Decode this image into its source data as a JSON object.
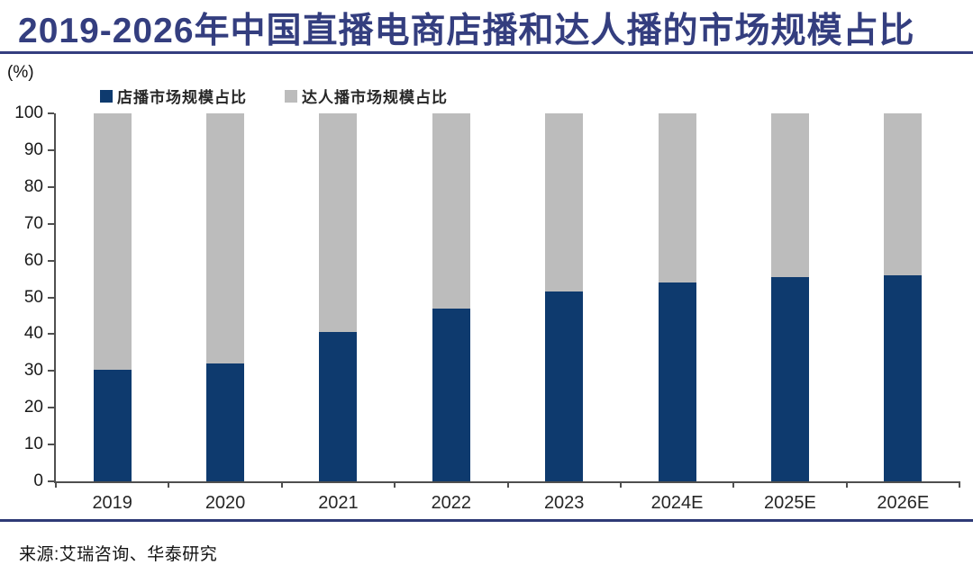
{
  "title": "2019-2026年中国直播电商店播和达人播的市场规模占比",
  "y_axis_unit_label": "(%)",
  "source": "来源:艾瑞咨询、华泰研究",
  "colors": {
    "store_bar": "#0e3a6e",
    "influencer_bar": "#bcbcbc",
    "title_blue": "#343e7f",
    "rule_blue": "#2e3a76",
    "axis": "#4f4f4f"
  },
  "chart_data": {
    "type": "bar",
    "stacked": true,
    "title": "2019-2026年中国直播电商店播和达人播的市场规模占比",
    "categories": [
      "2019",
      "2020",
      "2021",
      "2022",
      "2023",
      "2024E",
      "2025E",
      "2026E"
    ],
    "series": [
      {
        "name": "店播市场规模占比",
        "color": "#0e3a6e",
        "values": [
          30.4,
          32.0,
          40.6,
          47.0,
          51.6,
          54.0,
          55.4,
          56.0
        ]
      },
      {
        "name": "达人播市场规模占比",
        "color": "#bcbcbc",
        "values": [
          69.6,
          68.0,
          59.4,
          53.0,
          48.4,
          46.0,
          44.6,
          44.0
        ]
      }
    ],
    "xlabel": "",
    "ylabel": "(%)",
    "ylim": [
      0,
      100
    ],
    "y_ticks": [
      0,
      10,
      20,
      30,
      40,
      50,
      60,
      70,
      80,
      90,
      100
    ],
    "grid": false,
    "legend_position": "top"
  }
}
